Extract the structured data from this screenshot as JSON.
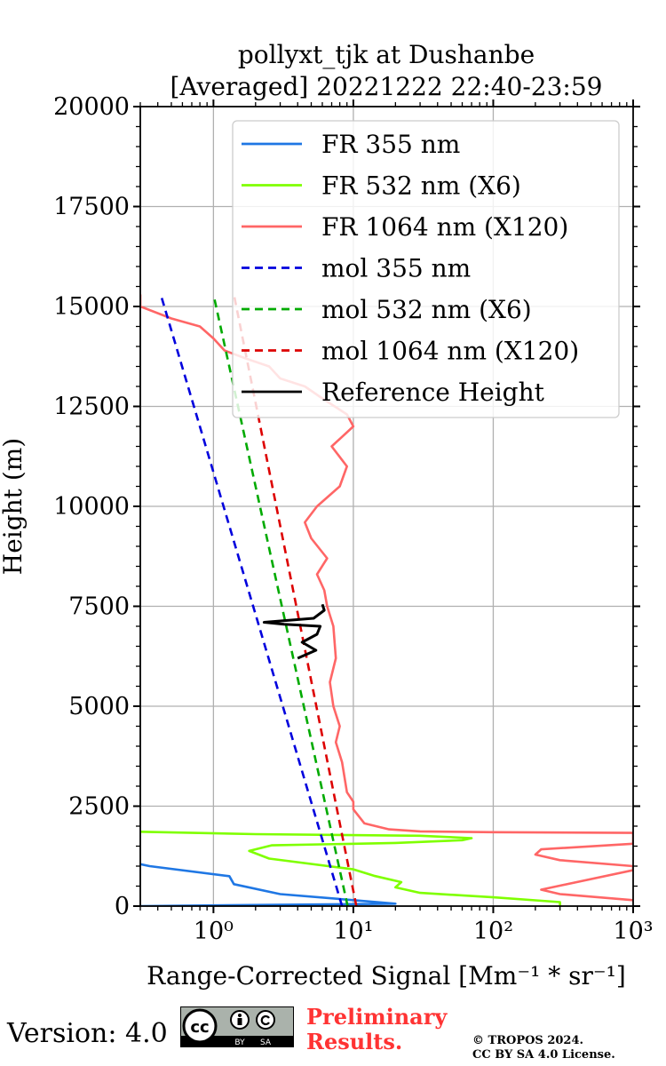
{
  "chart_data": {
    "type": "line",
    "title": [
      "pollyxt_tjk at Dushanbe",
      "[Averaged] 20221222 22:40-23:59"
    ],
    "xlabel": "Range-Corrected Signal [Mm⁻¹ * sr⁻¹]",
    "ylabel": "Height (m)",
    "xscale": "log",
    "xlim": [
      0.3,
      1000
    ],
    "ylim": [
      0,
      20000
    ],
    "grid": true,
    "legend_placement": "upper right",
    "xticks": [
      1,
      10,
      100,
      1000
    ],
    "xtick_labels": [
      "10⁰",
      "10¹",
      "10²",
      "10³"
    ],
    "yticks": [
      0,
      2500,
      5000,
      7500,
      10000,
      12500,
      15000,
      17500,
      20000
    ],
    "ytick_labels": [
      "0",
      "2500",
      "5000",
      "7500",
      "10000",
      "12500",
      "15000",
      "17500",
      "20000"
    ],
    "series": [
      {
        "name": "FR 355 nm",
        "color": "#1f77e4",
        "style": "solid",
        "points": [
          [
            0.3,
            0
          ],
          [
            20,
            60
          ],
          [
            10,
            150
          ],
          [
            3,
            300
          ],
          [
            1.4,
            550
          ],
          [
            1.3,
            750
          ],
          [
            0.35,
            1000
          ],
          [
            0.3,
            1050
          ]
        ]
      },
      {
        "name": "FR 532 nm (X6)",
        "color": "#7fff00",
        "style": "solid",
        "points": [
          [
            300,
            0
          ],
          [
            300,
            100
          ],
          [
            100,
            220
          ],
          [
            30,
            330
          ],
          [
            20,
            470
          ],
          [
            22,
            600
          ],
          [
            14,
            760
          ],
          [
            10,
            920
          ],
          [
            2.5,
            1190
          ],
          [
            1.8,
            1380
          ],
          [
            2.6,
            1520
          ],
          [
            20,
            1580
          ],
          [
            60,
            1650
          ],
          [
            70,
            1700
          ],
          [
            30,
            1760
          ],
          [
            2,
            1800
          ],
          [
            0.3,
            1860
          ]
        ]
      },
      {
        "name": "FR 1064 nm (X120)",
        "color": "#ff6666",
        "style": "solid",
        "points": [
          [
            1000,
            150
          ],
          [
            300,
            300
          ],
          [
            220,
            410
          ],
          [
            1000,
            900
          ],
          [
            1000,
            1000
          ],
          [
            300,
            1150
          ],
          [
            200,
            1290
          ],
          [
            220,
            1420
          ],
          [
            1000,
            1560
          ],
          [
            1000,
            1830
          ],
          [
            100,
            1850
          ],
          [
            30,
            1870
          ],
          [
            18,
            1920
          ],
          [
            12,
            2070
          ],
          [
            10,
            2420
          ],
          [
            10,
            2610
          ],
          [
            9,
            2850
          ],
          [
            8.3,
            3600
          ],
          [
            7.5,
            4100
          ],
          [
            8,
            4500
          ],
          [
            7.2,
            5000
          ],
          [
            6.8,
            5600
          ],
          [
            7.5,
            6200
          ],
          [
            7.2,
            7000
          ],
          [
            6.5,
            7500
          ],
          [
            6.2,
            7900
          ],
          [
            5.5,
            8300
          ],
          [
            6.5,
            8700
          ],
          [
            5,
            9200
          ],
          [
            4.5,
            9600
          ],
          [
            5.5,
            10000
          ],
          [
            8,
            10500
          ],
          [
            9,
            11000
          ],
          [
            7,
            11500
          ],
          [
            10,
            12000
          ],
          [
            9,
            12300
          ],
          [
            6,
            12700
          ],
          [
            4.5,
            13000
          ],
          [
            3,
            13200
          ],
          [
            2.5,
            13500
          ],
          [
            1.7,
            13700
          ],
          [
            1.2,
            13900
          ],
          [
            1,
            14200
          ],
          [
            0.8,
            14500
          ],
          [
            0.5,
            14700
          ],
          [
            0.3,
            15000
          ],
          [
            0.3,
            15300
          ]
        ]
      },
      {
        "name": "mol 355 nm",
        "color": "#0000dd",
        "style": "dashed",
        "points": [
          [
            8.3,
            0
          ],
          [
            0.42,
            15300
          ]
        ]
      },
      {
        "name": "mol 532 nm (X6)",
        "color": "#00aa00",
        "style": "dashed",
        "points": [
          [
            9.1,
            0
          ],
          [
            1.0,
            15300
          ]
        ]
      },
      {
        "name": "mol 1064 nm (X120)",
        "color": "#dd0000",
        "style": "dashed",
        "points": [
          [
            10.5,
            0
          ],
          [
            1.4,
            15300
          ]
        ]
      },
      {
        "name": "Reference Height",
        "color": "#000000",
        "style": "solid",
        "points": [
          [
            4.0,
            6200
          ],
          [
            5.4,
            6400
          ],
          [
            4.3,
            6600
          ],
          [
            5.5,
            6800
          ],
          [
            5.8,
            7000
          ],
          [
            3.2,
            7050
          ],
          [
            2.3,
            7100
          ],
          [
            5.2,
            7200
          ],
          [
            6.2,
            7400
          ],
          [
            6,
            7550
          ]
        ]
      }
    ]
  },
  "footer": {
    "version": "Version: 4.0",
    "preliminary": [
      "Preliminary",
      "Results."
    ],
    "copyright": [
      "© TROPOS 2024.",
      "CC BY SA 4.0 License."
    ]
  },
  "badge": {
    "cc": "cc",
    "by": "BY",
    "sa": "SA"
  }
}
